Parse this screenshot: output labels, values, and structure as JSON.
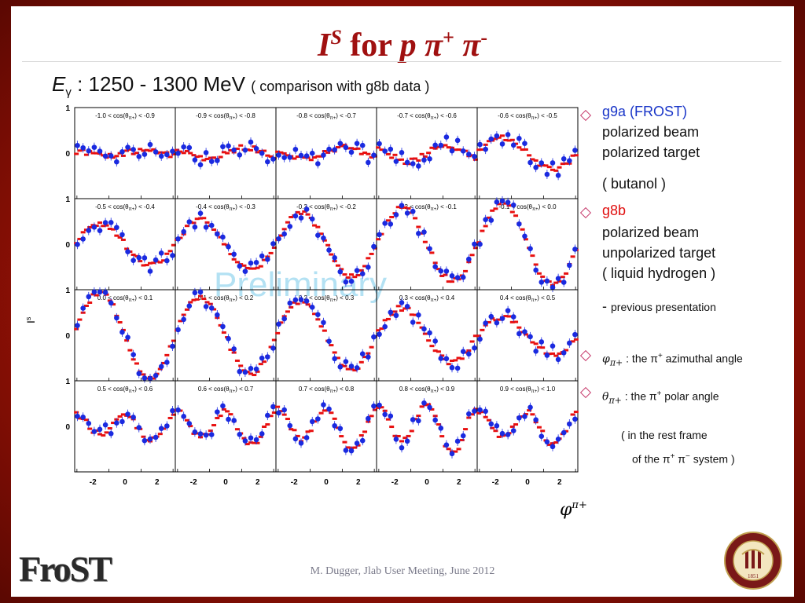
{
  "slide": {
    "title_main": "I",
    "title_sup": "S",
    "title_for": " for ",
    "title_p": "p",
    "title_pi1": " π",
    "title_pi1_sup": "+",
    "title_pi2": " π",
    "title_pi2_sup": "-",
    "energy_symbol": "E",
    "energy_sub": "γ",
    "energy_range": " : 1250 - 1300 MeV ",
    "comparison": "( comparison with g8b data )",
    "watermark": "Preliminary",
    "footer": "M. Dugger, Jlab User Meeting, June 2012",
    "logo_text": "FroST",
    "seal_top_text": "FLORIDA STATE UNIVERSITY",
    "seal_year": "1851"
  },
  "legend": {
    "g9a_label": "g9a (FROST)",
    "g9a_line1": "polarized beam",
    "g9a_line2": "polarized target",
    "g9a_line3": "( butanol )",
    "g8b_label": "g8b",
    "g8b_line1": "polarized beam",
    "g8b_line2": "unpolarized target",
    "g8b_line3": "( liquid hydrogen )",
    "prev_dash": "-",
    "prev_text": "previous presentation",
    "phi_symbol": "φ",
    "phi_sub": "π+",
    "phi_text": " : the π",
    "phi_text_sup": "+",
    "phi_text2": " azimuthal angle",
    "theta_symbol": "θ",
    "theta_sub": "π+",
    "theta_text": " : the π",
    "theta_text_sup": "+",
    "theta_text2": " polar angle",
    "rest1": "( in the rest frame",
    "rest2": "of the π",
    "rest2_sup1": "+",
    "rest2_mid": " π",
    "rest2_sup2": "−",
    "rest2_end": " system )"
  },
  "chart_data": {
    "type": "scatter",
    "ylabel": "I",
    "ylabel_sup": "s",
    "xlabel": "φ",
    "xlabel_sup": "π+",
    "xlim": [
      -3.14,
      3.14
    ],
    "ylim": [
      -1,
      1
    ],
    "xticks": [
      -2,
      0,
      2
    ],
    "yticks": [
      0,
      1
    ],
    "rows": 4,
    "cols": 5,
    "colors": {
      "g9a": "#1a2ae0",
      "g8b": "#e81010"
    },
    "panels": [
      {
        "label": "-1.0 < cos(θ",
        "label_sub": "π+",
        "label_end": ") < -0.9",
        "amp": 0.1,
        "shape": "flat"
      },
      {
        "label": "-0.9 < cos(θ",
        "label_sub": "π+",
        "label_end": ") < -0.8",
        "amp": 0.2,
        "shape": "flat"
      },
      {
        "label": "-0.8 < cos(θ",
        "label_sub": "π+",
        "label_end": ") < -0.7",
        "amp": 0.2,
        "shape": "flat"
      },
      {
        "label": "-0.7 < cos(θ",
        "label_sub": "π+",
        "label_end": ") < -0.6",
        "amp": 0.3,
        "shape": "flat"
      },
      {
        "label": "-0.6 < cos(θ",
        "label_sub": "π+",
        "label_end": ") < -0.5",
        "amp": 0.35,
        "shape": "falling"
      },
      {
        "label": "-0.5 < cos(θ",
        "label_sub": "π+",
        "label_end": ") < -0.4",
        "amp": 0.45,
        "shape": "falling"
      },
      {
        "label": "-0.4 < cos(θ",
        "label_sub": "π+",
        "label_end": ") < -0.3",
        "amp": 0.55,
        "shape": "falling"
      },
      {
        "label": "-0.3 < cos(θ",
        "label_sub": "π+",
        "label_end": ") < -0.2",
        "amp": 0.7,
        "shape": "falling"
      },
      {
        "label": "-0.2 < cos(θ",
        "label_sub": "π+",
        "label_end": ") < -0.1",
        "amp": 0.8,
        "shape": "falling"
      },
      {
        "label": "-0.1 < cos(θ",
        "label_sub": "π+",
        "label_end": ") < 0.0",
        "amp": 0.9,
        "shape": "falling"
      },
      {
        "label": "0.0 < cos(θ",
        "label_sub": "π+",
        "label_end": ") < 0.1",
        "amp": 0.95,
        "shape": "falling"
      },
      {
        "label": "0.1 < cos(θ",
        "label_sub": "π+",
        "label_end": ") < 0.2",
        "amp": 0.85,
        "shape": "falling"
      },
      {
        "label": "0.2 < cos(θ",
        "label_sub": "π+",
        "label_end": ") < 0.3",
        "amp": 0.75,
        "shape": "falling"
      },
      {
        "label": "0.3 < cos(θ",
        "label_sub": "π+",
        "label_end": ") < 0.4",
        "amp": 0.6,
        "shape": "falling"
      },
      {
        "label": "0.4 < cos(θ",
        "label_sub": "π+",
        "label_end": ") < 0.5",
        "amp": 0.4,
        "shape": "falling"
      },
      {
        "label": "0.5 < cos(θ",
        "label_sub": "π+",
        "label_end": ") < 0.6",
        "amp": 0.35,
        "shape": "wave"
      },
      {
        "label": "0.6 < cos(θ",
        "label_sub": "π+",
        "label_end": ") < 0.7",
        "amp": 0.45,
        "shape": "wave"
      },
      {
        "label": "0.7 < cos(θ",
        "label_sub": "π+",
        "label_end": ") < 0.8",
        "amp": 0.55,
        "shape": "wave"
      },
      {
        "label": "0.8 < cos(θ",
        "label_sub": "π+",
        "label_end": ") < 0.9",
        "amp": 0.65,
        "shape": "wave"
      },
      {
        "label": "0.9 < cos(θ",
        "label_sub": "π+",
        "label_end": ") < 1.0",
        "amp": 0.45,
        "shape": "wave"
      }
    ]
  }
}
